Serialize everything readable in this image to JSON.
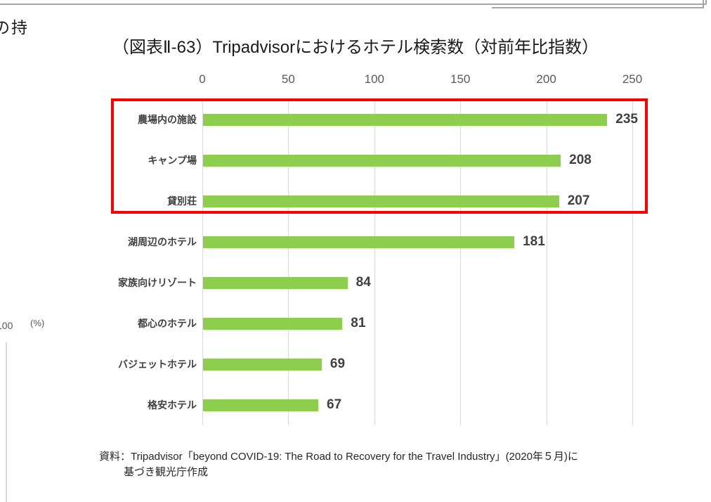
{
  "fragments": {
    "top_left_text": "の持",
    "left_chart_tick": "100",
    "left_chart_unit": "(%)"
  },
  "chart_data": {
    "type": "bar",
    "orientation": "horizontal",
    "title": "（図表Ⅱ-63）Tripadvisorにおけるホテル検索数（対前年比指数）",
    "categories": [
      "農場内の施設",
      "キャンプ場",
      "貸別荘",
      "湖周辺のホテル",
      "家族向けリゾート",
      "都心のホテル",
      "バジェットホテル",
      "格安ホテル"
    ],
    "values": [
      235,
      208,
      207,
      181,
      84,
      81,
      69,
      67
    ],
    "x_ticks": [
      0,
      50,
      100,
      150,
      200,
      250
    ],
    "xlim": [
      0,
      260
    ],
    "grid": true,
    "legend": "none",
    "bar_color": "#8dce4e",
    "value_label_color": "#404040",
    "highlight": {
      "style": "red-outline-box",
      "color": "#ff0000",
      "rows": [
        "農場内の施設",
        "キャンプ場",
        "貸別荘"
      ]
    },
    "source_line1": "資料：Tripadvisor「beyond COVID-19: The Road to Recovery for the Travel Industry」(2020年５月)に",
    "source_line2": "基づき観光庁作成"
  }
}
